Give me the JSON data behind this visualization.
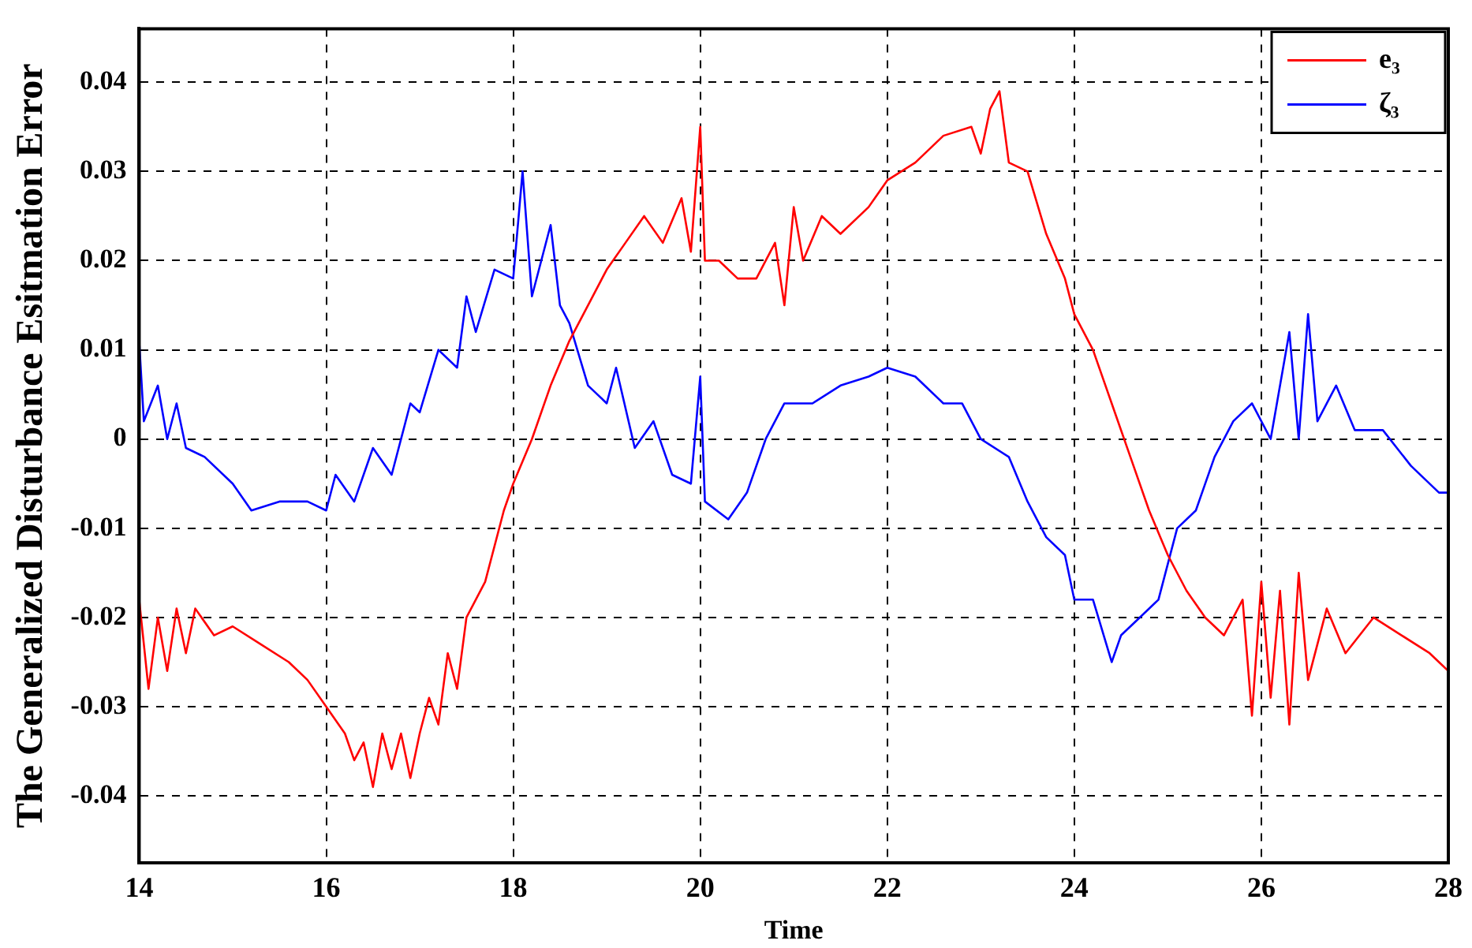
{
  "chart_data": {
    "type": "line",
    "xlabel": "Time",
    "ylabel": "The Generalized Disturbance Esitmation Error",
    "xlim": [
      14,
      28
    ],
    "xticks": [
      14,
      16,
      18,
      20,
      22,
      24,
      26,
      28
    ],
    "ylim": [
      -0.0475,
      0.046
    ],
    "yticks": [
      -0.04,
      -0.03,
      -0.02,
      -0.01,
      0,
      0.01,
      0.02,
      0.03,
      0.04
    ],
    "grid": true,
    "legend": "top right",
    "marker": "none",
    "series": [
      {
        "name": "e₃",
        "color": "#ff0000",
        "x": [
          14,
          14.1,
          14.2,
          14.3,
          14.4,
          14.5,
          14.6,
          14.8,
          15,
          15.3,
          15.6,
          15.8,
          16,
          16.2,
          16.3,
          16.4,
          16.5,
          16.6,
          16.7,
          16.8,
          16.9,
          17,
          17.1,
          17.2,
          17.3,
          17.4,
          17.5,
          17.7,
          17.9,
          18,
          18.2,
          18.4,
          18.6,
          18.8,
          19,
          19.2,
          19.4,
          19.6,
          19.8,
          19.9,
          20,
          20.05,
          20.2,
          20.4,
          20.6,
          20.8,
          20.9,
          21,
          21.1,
          21.3,
          21.5,
          21.8,
          22,
          22.3,
          22.6,
          22.9,
          23,
          23.1,
          23.2,
          23.3,
          23.5,
          23.7,
          23.9,
          24,
          24.2,
          24.4,
          24.6,
          24.8,
          25,
          25.2,
          25.4,
          25.6,
          25.8,
          25.9,
          26,
          26.1,
          26.2,
          26.3,
          26.4,
          26.5,
          26.7,
          26.9,
          27.2,
          27.5,
          27.8,
          28
        ],
        "values": [
          -0.018,
          -0.028,
          -0.02,
          -0.026,
          -0.019,
          -0.024,
          -0.019,
          -0.022,
          -0.021,
          -0.023,
          -0.025,
          -0.027,
          -0.03,
          -0.033,
          -0.036,
          -0.034,
          -0.039,
          -0.033,
          -0.037,
          -0.033,
          -0.038,
          -0.033,
          -0.029,
          -0.032,
          -0.024,
          -0.028,
          -0.02,
          -0.016,
          -0.008,
          -0.005,
          0.0,
          0.006,
          0.011,
          0.015,
          0.019,
          0.022,
          0.025,
          0.022,
          0.027,
          0.021,
          0.035,
          0.02,
          0.02,
          0.018,
          0.018,
          0.022,
          0.015,
          0.026,
          0.02,
          0.025,
          0.023,
          0.026,
          0.029,
          0.031,
          0.034,
          0.035,
          0.032,
          0.037,
          0.039,
          0.031,
          0.03,
          0.023,
          0.018,
          0.014,
          0.01,
          0.004,
          -0.002,
          -0.008,
          -0.013,
          -0.017,
          -0.02,
          -0.022,
          -0.018,
          -0.031,
          -0.016,
          -0.029,
          -0.017,
          -0.032,
          -0.015,
          -0.027,
          -0.019,
          -0.024,
          -0.02,
          -0.022,
          -0.024,
          -0.026
        ]
      },
      {
        "name": "ζ₃",
        "color": "#0000ff",
        "x": [
          14,
          14.05,
          14.2,
          14.3,
          14.4,
          14.5,
          14.7,
          15,
          15.2,
          15.5,
          15.8,
          16,
          16.1,
          16.3,
          16.5,
          16.7,
          16.9,
          17,
          17.2,
          17.4,
          17.5,
          17.6,
          17.8,
          18,
          18.1,
          18.2,
          18.4,
          18.5,
          18.6,
          18.8,
          19,
          19.1,
          19.3,
          19.5,
          19.7,
          19.9,
          20,
          20.05,
          20.3,
          20.5,
          20.7,
          20.9,
          21.2,
          21.5,
          21.8,
          22,
          22.3,
          22.6,
          22.8,
          23,
          23.3,
          23.5,
          23.7,
          23.9,
          24,
          24.2,
          24.4,
          24.5,
          24.7,
          24.9,
          25.1,
          25.3,
          25.5,
          25.7,
          25.9,
          26.1,
          26.3,
          26.4,
          26.5,
          26.6,
          26.8,
          27,
          27.3,
          27.6,
          27.9,
          28
        ],
        "values": [
          0.011,
          0.002,
          0.006,
          0.0,
          0.004,
          -0.001,
          -0.002,
          -0.005,
          -0.008,
          -0.007,
          -0.007,
          -0.008,
          -0.004,
          -0.007,
          -0.001,
          -0.004,
          0.004,
          0.003,
          0.01,
          0.008,
          0.016,
          0.012,
          0.019,
          0.018,
          0.03,
          0.016,
          0.024,
          0.015,
          0.013,
          0.006,
          0.004,
          0.008,
          -0.001,
          0.002,
          -0.004,
          -0.005,
          0.007,
          -0.007,
          -0.009,
          -0.006,
          0.0,
          0.004,
          0.004,
          0.006,
          0.007,
          0.008,
          0.007,
          0.004,
          0.004,
          0.0,
          -0.002,
          -0.007,
          -0.011,
          -0.013,
          -0.018,
          -0.018,
          -0.025,
          -0.022,
          -0.02,
          -0.018,
          -0.01,
          -0.008,
          -0.002,
          0.002,
          0.004,
          0.0,
          0.012,
          0.0,
          0.014,
          0.002,
          0.006,
          0.001,
          0.001,
          -0.003,
          -0.006,
          -0.006
        ]
      }
    ]
  }
}
